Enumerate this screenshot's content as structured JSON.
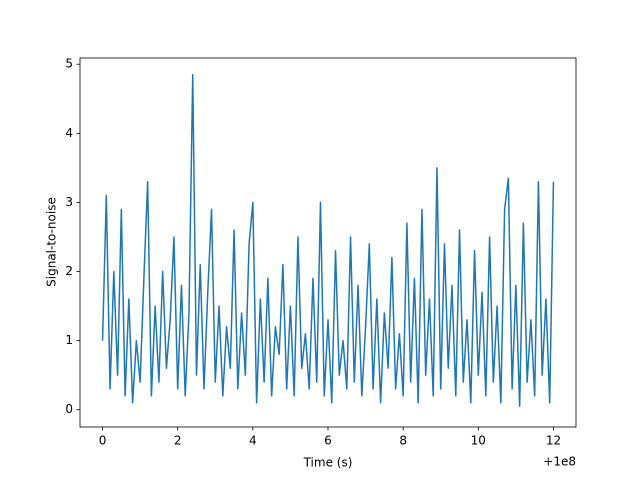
{
  "chart_data": {
    "type": "line",
    "xlabel": "Time (s)",
    "ylabel": "Signal-to-noise",
    "x_offset_label": "+1e8",
    "xlim": [
      -0.6,
      12.6
    ],
    "xticks": [
      0,
      2,
      4,
      6,
      8,
      10,
      12
    ],
    "ylim": [
      -0.25,
      5.09
    ],
    "yticks": [
      0,
      1,
      2,
      3,
      4,
      5
    ],
    "series": [
      {
        "color": "#1f77b4",
        "x": [
          0,
          0.1,
          0.2,
          0.3,
          0.4,
          0.5,
          0.6,
          0.7,
          0.8,
          0.9,
          1,
          1.1,
          1.2,
          1.3,
          1.4,
          1.5,
          1.6,
          1.7,
          1.8,
          1.9,
          2,
          2.1,
          2.2,
          2.3,
          2.4,
          2.5,
          2.6,
          2.7,
          2.8,
          2.9,
          3,
          3.1,
          3.2,
          3.3,
          3.4,
          3.5,
          3.6,
          3.7,
          3.8,
          3.9,
          4,
          4.1,
          4.2,
          4.3,
          4.4,
          4.5,
          4.6,
          4.7,
          4.8,
          4.9,
          5,
          5.1,
          5.2,
          5.3,
          5.4,
          5.5,
          5.6,
          5.7,
          5.8,
          5.9,
          6,
          6.1,
          6.2,
          6.3,
          6.4,
          6.5,
          6.6,
          6.7,
          6.8,
          6.9,
          7,
          7.1,
          7.2,
          7.3,
          7.4,
          7.5,
          7.6,
          7.7,
          7.8,
          7.9,
          8,
          8.1,
          8.2,
          8.3,
          8.4,
          8.5,
          8.6,
          8.7,
          8.8,
          8.9,
          9,
          9.1,
          9.2,
          9.3,
          9.4,
          9.5,
          9.6,
          9.7,
          9.8,
          9.9,
          10,
          10.1,
          10.2,
          10.3,
          10.4,
          10.5,
          10.6,
          10.7,
          10.8,
          10.9,
          11,
          11.1,
          11.2,
          11.3,
          11.4,
          11.5,
          11.6,
          11.7,
          11.8,
          11.9,
          12
        ],
        "values": [
          1.0,
          3.1,
          0.3,
          2.0,
          0.5,
          2.9,
          0.2,
          1.6,
          0.1,
          1.0,
          0.4,
          1.9,
          3.3,
          0.2,
          1.5,
          0.4,
          2.0,
          0.6,
          1.3,
          2.5,
          0.3,
          1.8,
          0.2,
          1.4,
          4.85,
          0.5,
          2.1,
          0.3,
          1.7,
          2.9,
          0.4,
          1.5,
          0.2,
          1.2,
          0.6,
          2.6,
          0.3,
          1.4,
          0.5,
          2.4,
          3.0,
          0.1,
          1.6,
          0.4,
          1.9,
          0.2,
          1.2,
          0.8,
          2.1,
          0.3,
          1.5,
          0.2,
          2.5,
          0.6,
          1.1,
          0.3,
          1.9,
          0.4,
          3.0,
          0.2,
          1.3,
          0.1,
          2.3,
          0.5,
          1.0,
          0.3,
          2.5,
          0.4,
          1.8,
          0.2,
          1.2,
          2.4,
          0.3,
          1.6,
          0.1,
          1.4,
          0.6,
          2.2,
          0.3,
          1.1,
          0.2,
          2.7,
          0.4,
          1.9,
          0.1,
          2.9,
          0.5,
          1.6,
          0.2,
          3.5,
          0.3,
          2.4,
          0.6,
          1.8,
          0.2,
          2.6,
          0.4,
          1.3,
          0.1,
          2.3,
          0.5,
          1.7,
          0.2,
          2.5,
          0.4,
          1.5,
          0.1,
          2.9,
          3.35,
          0.3,
          1.8,
          0.05,
          2.7,
          0.4,
          1.3,
          0.2,
          3.3,
          0.5,
          1.6,
          0.1,
          3.3
        ]
      }
    ]
  }
}
